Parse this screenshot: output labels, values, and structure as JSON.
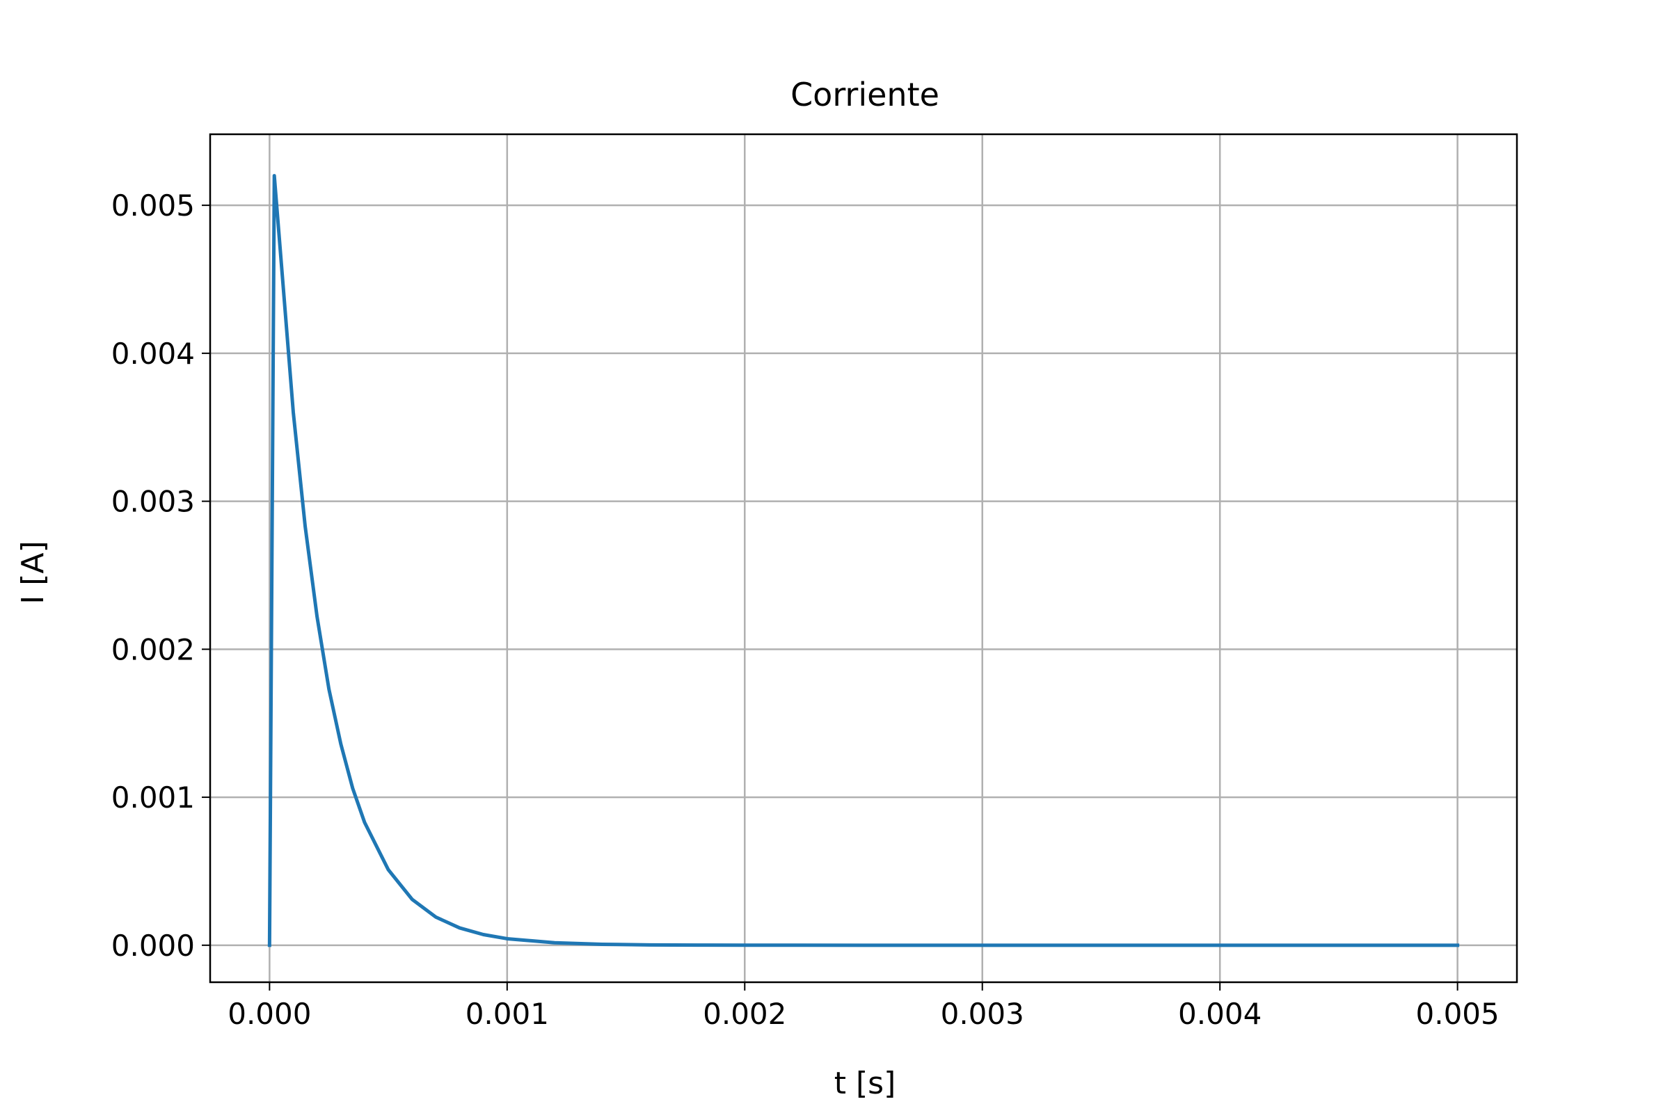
{
  "chart_data": {
    "type": "line",
    "title": "Corriente",
    "xlabel": "t [s]",
    "ylabel": "I [A]",
    "xlim": [
      -0.00025,
      0.00525
    ],
    "ylim": [
      -0.00025,
      0.00548
    ],
    "xticks": [
      0.0,
      0.001,
      0.002,
      0.003,
      0.004,
      0.005
    ],
    "xtick_labels": [
      "0.000",
      "0.001",
      "0.002",
      "0.003",
      "0.004",
      "0.005"
    ],
    "yticks": [
      0.0,
      0.001,
      0.002,
      0.003,
      0.004,
      0.005
    ],
    "ytick_labels": [
      "0.000",
      "0.001",
      "0.002",
      "0.003",
      "0.004",
      "0.005"
    ],
    "grid": true,
    "legend": false,
    "series": [
      {
        "color": "#1f77b4",
        "x": [
          0.0,
          1e-05,
          2e-05,
          5e-05,
          0.0001,
          0.00015,
          0.0002,
          0.00025,
          0.0003,
          0.00035,
          0.0004,
          0.0005,
          0.0006,
          0.0007,
          0.0008,
          0.0009,
          0.001,
          0.0012,
          0.0014,
          0.0016,
          0.0018,
          0.002,
          0.0025,
          0.003,
          0.0035,
          0.004,
          0.0045,
          0.005
        ],
        "y": [
          0.0,
          0.0026,
          0.0052,
          0.0046,
          0.0036,
          0.00283,
          0.00222,
          0.00173,
          0.00136,
          0.00106,
          0.00083,
          0.00051,
          0.00031,
          0.00019,
          0.000117,
          7.2e-05,
          4.4e-05,
          1.66e-05,
          6.2e-06,
          2.3e-06,
          9e-07,
          3e-07,
          0.0,
          0.0,
          0.0,
          0.0,
          0.0,
          0.0
        ]
      }
    ]
  }
}
